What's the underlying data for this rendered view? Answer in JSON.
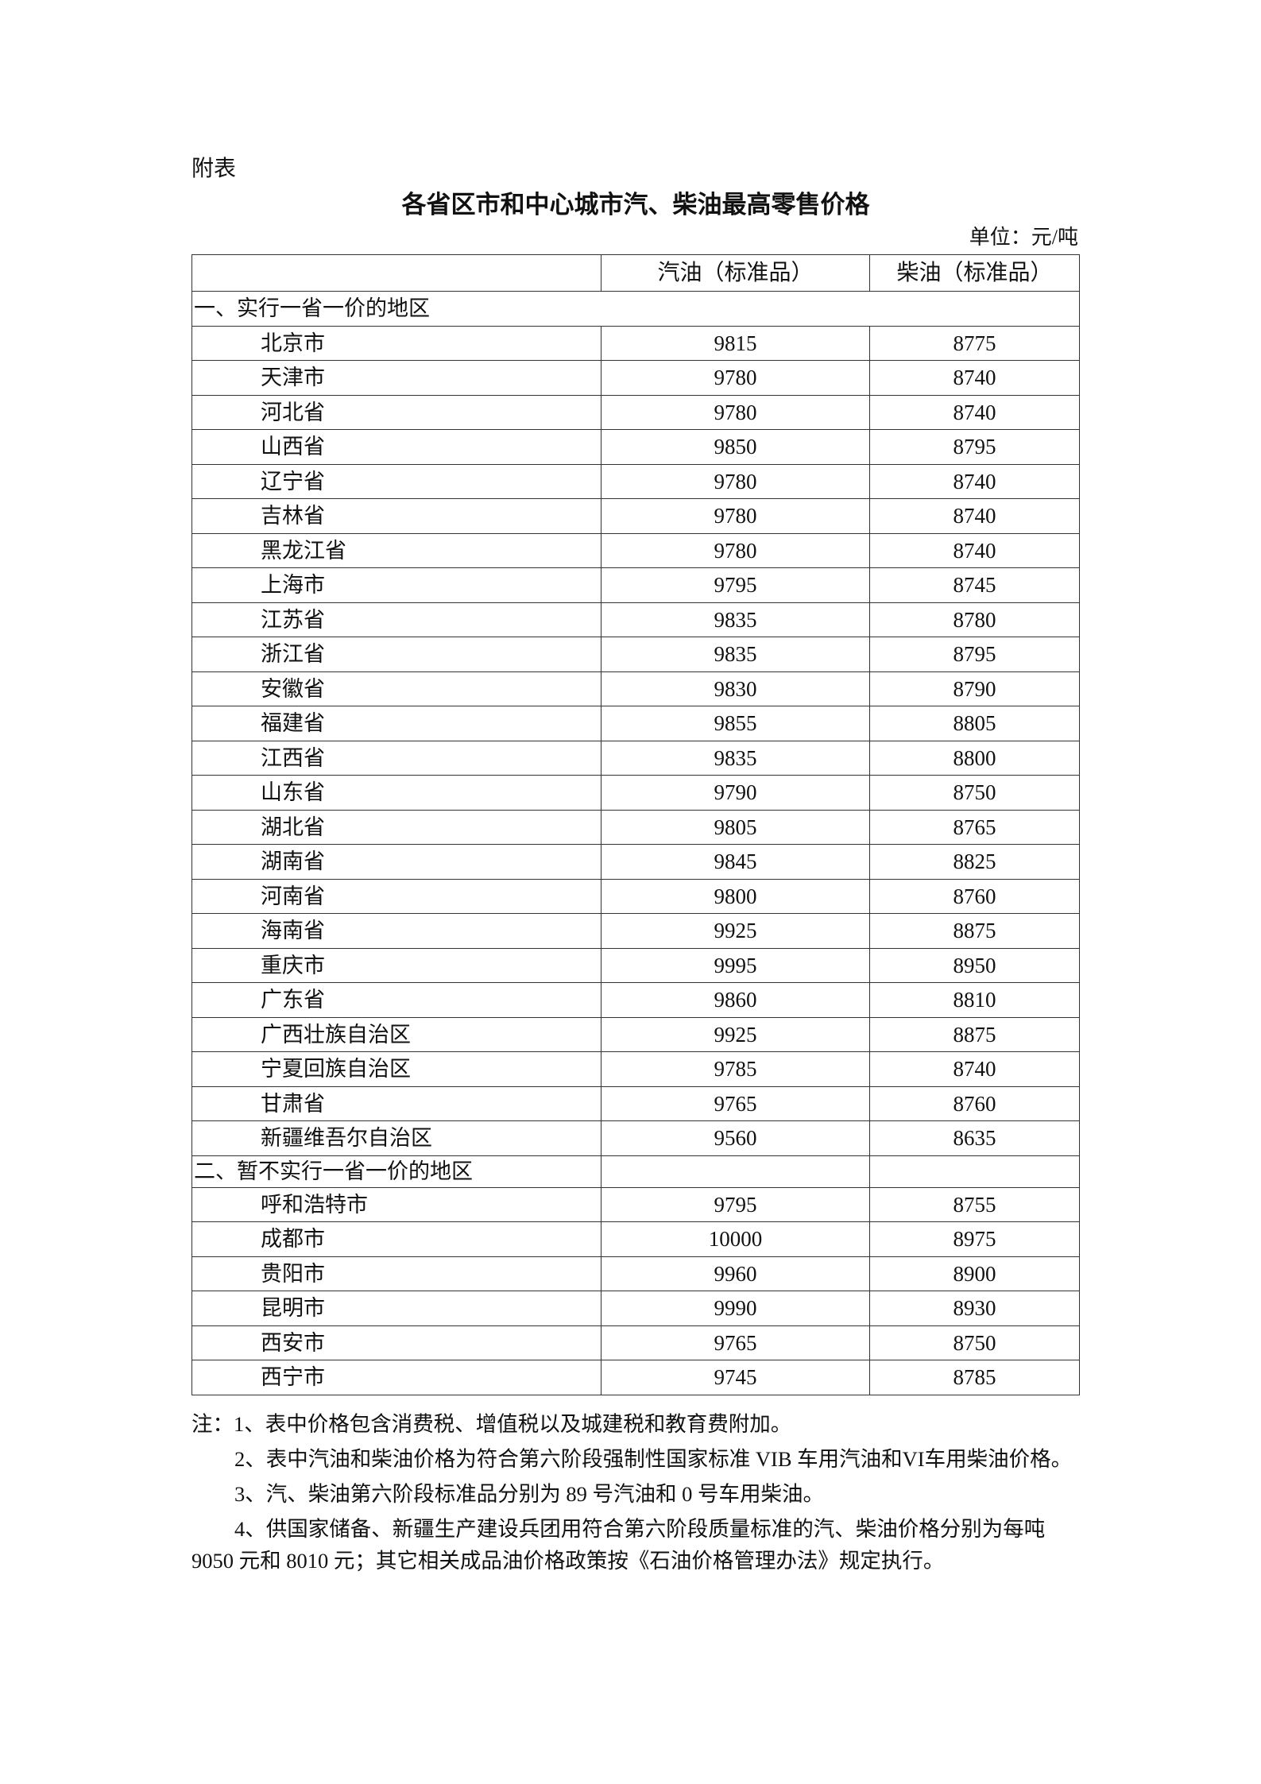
{
  "appendix_label": "附表",
  "title": "各省区市和中心城市汽、柴油最高零售价格",
  "unit": "单位：元/吨",
  "table": {
    "headers": [
      "",
      "汽油（标准品）",
      "柴油（标准品）"
    ],
    "section1": {
      "label": "一、实行一省一价的地区",
      "rows": [
        [
          "北京市",
          "9815",
          "8775"
        ],
        [
          "天津市",
          "9780",
          "8740"
        ],
        [
          "河北省",
          "9780",
          "8740"
        ],
        [
          "山西省",
          "9850",
          "8795"
        ],
        [
          "辽宁省",
          "9780",
          "8740"
        ],
        [
          "吉林省",
          "9780",
          "8740"
        ],
        [
          "黑龙江省",
          "9780",
          "8740"
        ],
        [
          "上海市",
          "9795",
          "8745"
        ],
        [
          "江苏省",
          "9835",
          "8780"
        ],
        [
          "浙江省",
          "9835",
          "8795"
        ],
        [
          "安徽省",
          "9830",
          "8790"
        ],
        [
          "福建省",
          "9855",
          "8805"
        ],
        [
          "江西省",
          "9835",
          "8800"
        ],
        [
          "山东省",
          "9790",
          "8750"
        ],
        [
          "湖北省",
          "9805",
          "8765"
        ],
        [
          "湖南省",
          "9845",
          "8825"
        ],
        [
          "河南省",
          "9800",
          "8760"
        ],
        [
          "海南省",
          "9925",
          "8875"
        ],
        [
          "重庆市",
          "9995",
          "8950"
        ],
        [
          "广东省",
          "9860",
          "8810"
        ],
        [
          "广西壮族自治区",
          "9925",
          "8875"
        ],
        [
          "宁夏回族自治区",
          "9785",
          "8740"
        ],
        [
          "甘肃省",
          "9765",
          "8760"
        ],
        [
          "新疆维吾尔自治区",
          "9560",
          "8635"
        ]
      ]
    },
    "section2": {
      "label": "二、暂不实行一省一价的地区",
      "rows": [
        [
          "呼和浩特市",
          "9795",
          "8755"
        ],
        [
          "成都市",
          "10000",
          "8975"
        ],
        [
          "贵阳市",
          "9960",
          "8900"
        ],
        [
          "昆明市",
          "9990",
          "8930"
        ],
        [
          "西安市",
          "9765",
          "8750"
        ],
        [
          "西宁市",
          "9745",
          "8785"
        ]
      ]
    }
  },
  "notes": [
    "注：1、表中价格包含消费税、增值税以及城建税和教育费附加。",
    "2、表中汽油和柴油价格为符合第六阶段强制性国家标准 VIB 车用汽油和VI车用柴油价格。",
    "3、汽、柴油第六阶段标准品分别为 89 号汽油和 0 号车用柴油。",
    "4、供国家储备、新疆生产建设兵团用符合第六阶段质量标准的汽、柴油价格分别为每吨 9050 元和 8010 元；其它相关成品油价格政策按《石油价格管理办法》规定执行。"
  ]
}
